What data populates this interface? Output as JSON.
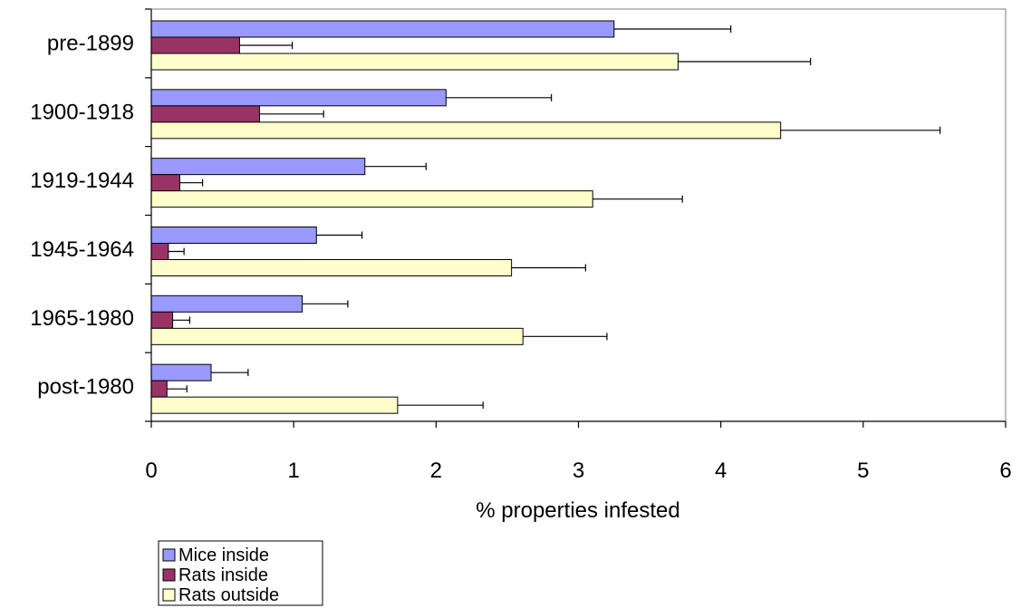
{
  "chart_data": {
    "type": "bar",
    "orientation": "horizontal",
    "categories": [
      "pre-1899",
      "1900-1918",
      "1919-1944",
      "1945-1964",
      "1965-1980",
      "post-1980"
    ],
    "series": [
      {
        "name": "Mice inside",
        "color": "#9999ff",
        "values": [
          3.25,
          2.07,
          1.5,
          1.16,
          1.06,
          0.42
        ],
        "errors": [
          0.82,
          0.74,
          0.43,
          0.32,
          0.32,
          0.26
        ]
      },
      {
        "name": "Rats inside",
        "color": "#993366",
        "values": [
          0.62,
          0.76,
          0.2,
          0.12,
          0.15,
          0.11
        ],
        "errors": [
          0.37,
          0.45,
          0.16,
          0.11,
          0.12,
          0.14
        ]
      },
      {
        "name": "Rats outside",
        "color": "#ffffcc",
        "values": [
          3.7,
          4.42,
          3.1,
          2.53,
          2.61,
          1.73
        ],
        "errors": [
          0.93,
          1.12,
          0.63,
          0.52,
          0.59,
          0.6
        ]
      }
    ],
    "xlabel": "% properties infested",
    "ylabel": "",
    "xlim": [
      0,
      6
    ],
    "x_ticks": [
      "0",
      "1",
      "2",
      "3",
      "4",
      "5",
      "6"
    ],
    "grid": false,
    "legend_position": "bottom-left"
  }
}
